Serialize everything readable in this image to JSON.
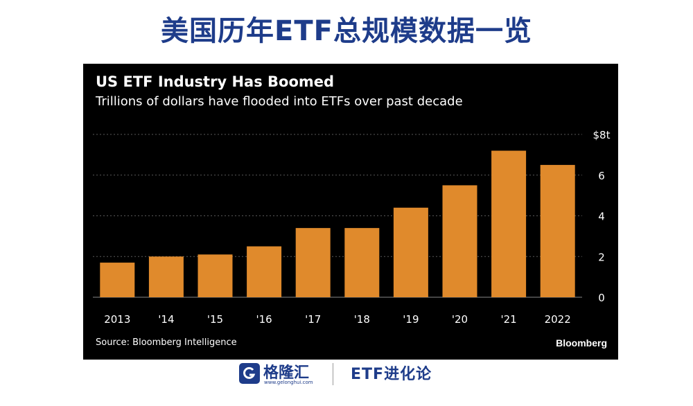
{
  "page_title": "美国历年ETF总规模数据一览",
  "footer": {
    "logo_text": "格隆汇",
    "logo_url": "www.gelonghui.com",
    "column_name": "ETF进化论"
  },
  "colors": {
    "background": "#000000",
    "bar": "#e08a2c",
    "text": "#ffffff",
    "grid": "#5a5a5a",
    "title_blue": "#1e3c8a"
  },
  "chart_data": {
    "type": "bar",
    "title": "US ETF Industry Has Boomed",
    "subtitle": "Trillions of dollars have flooded into ETFs over past decade",
    "categories": [
      "2013",
      "'14",
      "'15",
      "'16",
      "'17",
      "'18",
      "'19",
      "'20",
      "'21",
      "2022"
    ],
    "values": [
      1.7,
      2.0,
      2.1,
      2.5,
      3.4,
      3.4,
      4.4,
      5.5,
      7.2,
      6.5
    ],
    "y_ticks": [
      "0",
      "2",
      "4",
      "6",
      "$8t"
    ],
    "ylim": [
      0,
      8
    ],
    "y_axis_position": "right",
    "grid": true,
    "source": "Source: Bloomberg Intelligence",
    "brand": "Bloomberg"
  }
}
